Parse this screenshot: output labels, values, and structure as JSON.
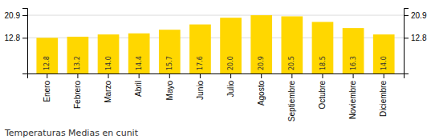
{
  "chart_data": {
    "type": "bar",
    "title": "Temperaturas Medias en cunit",
    "categories": [
      "Enero",
      "Febrero",
      "Marzo",
      "Abril",
      "Mayo",
      "Junio",
      "Julio",
      "Agosto",
      "Septiembre",
      "Octubre",
      "Noviembre",
      "Diciembre"
    ],
    "values": [
      12.8,
      13.2,
      14.0,
      14.4,
      15.7,
      17.6,
      20.0,
      20.9,
      20.5,
      18.5,
      16.3,
      14.0
    ],
    "value_labels": [
      "12.8",
      "13.2",
      "14.0",
      "14.4",
      "15.7",
      "17.6",
      "20.0",
      "20.9",
      "20.5",
      "18.5",
      "16.3",
      "14.0"
    ],
    "color": "#FFD700",
    "ylim": [
      0.0,
      23.5
    ],
    "yticks": [
      12.8,
      20.9
    ],
    "y2lim": [
      0.0,
      23.5
    ],
    "y2ticks": [
      12.8,
      20.9
    ],
    "grid": true,
    "data_labels": true
  }
}
